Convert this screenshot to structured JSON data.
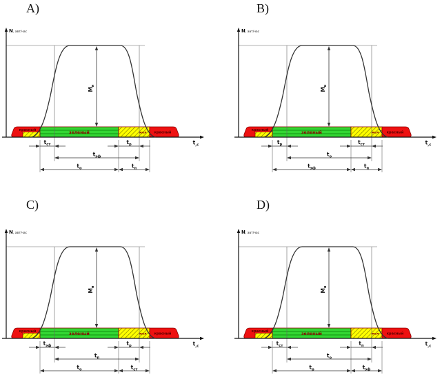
{
  "figure": {
    "y_axis_label": {
      "main": "N",
      "small": ", авт/час"
    },
    "x_axis_label": {
      "main": "t",
      "sub": ",с"
    },
    "peak_label": {
      "main": "М",
      "sub": "н"
    },
    "signal_bar": {
      "segments": [
        {
          "name": "red-left",
          "label": "красный",
          "type": "red"
        },
        {
          "name": "redyellow-left",
          "label": "",
          "type": "yellow-hatched"
        },
        {
          "name": "green",
          "label": "зеленый",
          "type": "green"
        },
        {
          "name": "yellow-right",
          "label": "жел",
          "type": "yellow-hatched"
        },
        {
          "name": "red-right",
          "label": "красный",
          "type": "red"
        }
      ]
    },
    "colors": {
      "red": "#ee1111",
      "green": "#33d633",
      "yellow": "#ffff00",
      "bar_outline": "#8b0000",
      "bar_text": "#8b0000",
      "hatch_line": "#7a7a00",
      "green_line": "#067a06",
      "curve": "#333333",
      "axis": "#111111",
      "thin_line": "#666666",
      "dim": "#333333"
    }
  },
  "charts": [
    {
      "title": "A)",
      "dims": {
        "row1_left": {
          "main": "t",
          "sub": "ст"
        },
        "row1_right": {
          "main": "t",
          "sub": "р"
        },
        "row2": {
          "main": "t",
          "sub": "эф"
        },
        "row3_left": {
          "main": "t",
          "sub": "о"
        },
        "row3_right": {
          "main": "t",
          "sub": "п"
        }
      }
    },
    {
      "title": "B)",
      "dims": {
        "row1_left": {
          "main": "t",
          "sub": "р"
        },
        "row1_right": {
          "main": "t",
          "sub": "ст"
        },
        "row2": {
          "main": "t",
          "sub": "о"
        },
        "row3_left": {
          "main": "t",
          "sub": "эф"
        },
        "row3_right": {
          "main": "t",
          "sub": "п"
        }
      }
    },
    {
      "title": "C)",
      "dims": {
        "row1_left": {
          "main": "t",
          "sub": "эф"
        },
        "row1_right": {
          "main": "t",
          "sub": "р"
        },
        "row2": {
          "main": "t",
          "sub": "п"
        },
        "row3_left": {
          "main": "t",
          "sub": "о"
        },
        "row3_right": {
          "main": "t",
          "sub": "ст"
        }
      }
    },
    {
      "title": "D)",
      "dims": {
        "row1_left": {
          "main": "t",
          "sub": "ст"
        },
        "row1_right": {
          "main": "t",
          "sub": "п"
        },
        "row2": {
          "main": "t",
          "sub": "о"
        },
        "row3_left": {
          "main": "t",
          "sub": "р"
        },
        "row3_right": {
          "main": "t",
          "sub": "эф"
        }
      }
    }
  ],
  "chart_data": {
    "type": "line",
    "xlabel": "t,с",
    "ylabel": "N, авт/час",
    "peak_label": "Мн",
    "description": "Four identical schematic panels of traffic flow intensity N versus time t over one signal cycle: an S-shaped flat-topped saturation curve of height Мн above a signal timeline (red, red-yellow hatched, green, yellow hatched, red). Panels differ only in which of five interval labels is applied to each measured span.",
    "signal_phase_labels": [
      "красный",
      "",
      "зеленый",
      "жел",
      "красный"
    ],
    "interval_positions": [
      "green-start to line1 (row1 left)",
      "green-end to line2 (row1 right)",
      "line1 to line2 (row2)",
      "green-start to green-end (row3 left)",
      "green-end to yellow-end (row3 right)"
    ],
    "panels": [
      {
        "panel": "A)",
        "interval_labels": [
          "tст",
          "tр",
          "tэф",
          "tо",
          "tп"
        ]
      },
      {
        "panel": "B)",
        "interval_labels": [
          "tр",
          "tст",
          "tо",
          "tэф",
          "tп"
        ]
      },
      {
        "panel": "C)",
        "interval_labels": [
          "tэф",
          "tр",
          "tп",
          "tо",
          "tст"
        ]
      },
      {
        "panel": "D)",
        "interval_labels": [
          "tст",
          "tп",
          "tо",
          "tр",
          "tэф"
        ]
      }
    ]
  }
}
